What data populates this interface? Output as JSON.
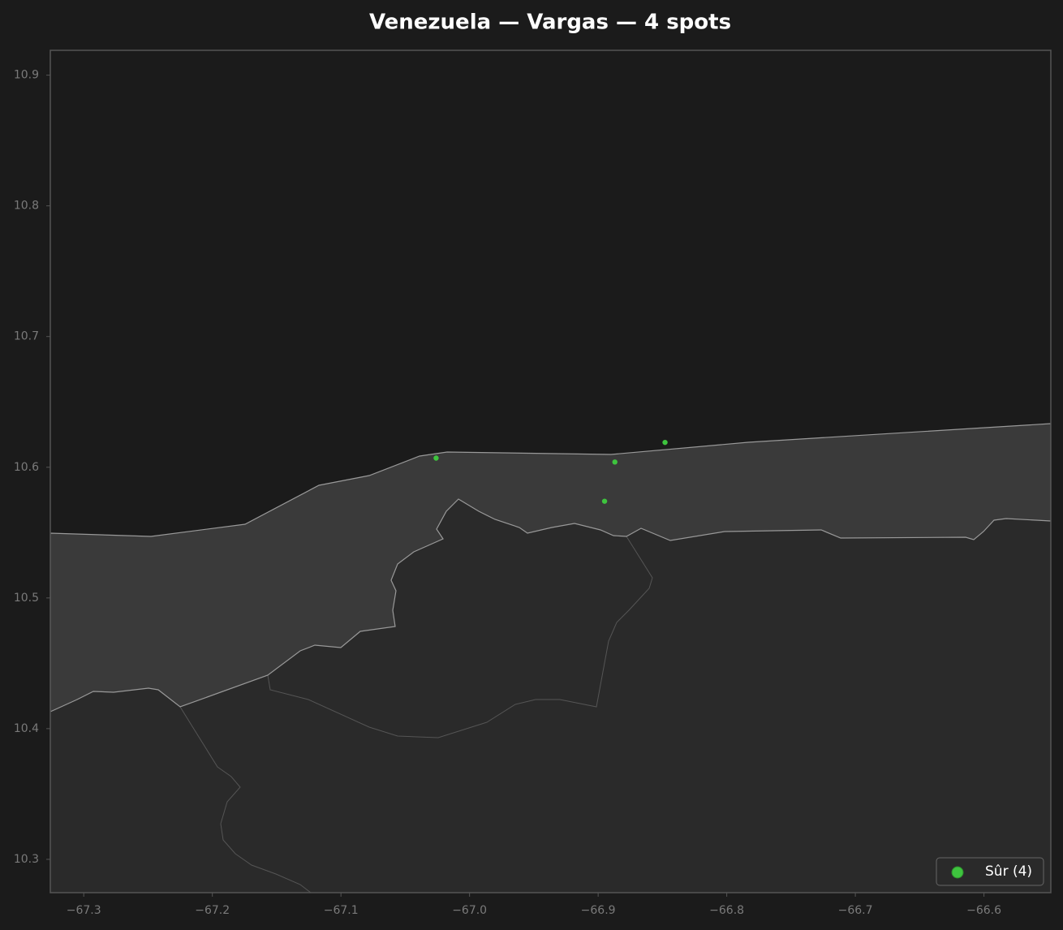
{
  "chart_data": {
    "type": "scatter",
    "title": "Venezuela — Vargas — 4 spots",
    "xlim": [
      -67.326,
      -66.548
    ],
    "ylim": [
      10.2745,
      10.919
    ],
    "xticks": [
      {
        "value": -67.3,
        "label": "−67.3"
      },
      {
        "value": -67.2,
        "label": "−67.2"
      },
      {
        "value": -67.1,
        "label": "−67.1"
      },
      {
        "value": -67.0,
        "label": "−67.0"
      },
      {
        "value": -66.9,
        "label": "−66.9"
      },
      {
        "value": -66.8,
        "label": "−66.8"
      },
      {
        "value": -66.7,
        "label": "−66.7"
      },
      {
        "value": -66.6,
        "label": "−66.6"
      }
    ],
    "yticks": [
      10.3,
      10.4,
      10.5,
      10.6,
      10.7,
      10.8,
      10.9
    ],
    "legend": "lower right",
    "series": [
      {
        "name": "Sûr (4)",
        "color": "#3ec43e",
        "x": [
          -67.026,
          -66.887,
          -66.848,
          -66.895
        ],
        "values": [
          10.607,
          10.604,
          10.619,
          10.574
        ]
      }
    ]
  }
}
